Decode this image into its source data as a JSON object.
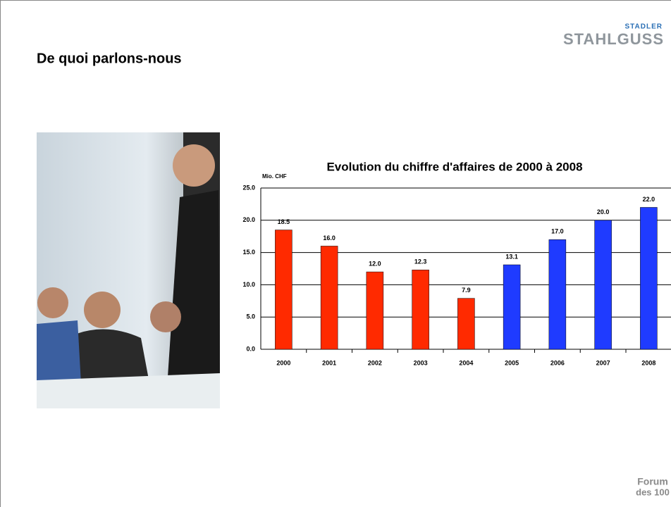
{
  "slide_title": "De quoi parlons-nous",
  "logo": {
    "top": "STADLER",
    "bottom": "STAHLGUSS"
  },
  "footer_logo": {
    "line1": "Forum",
    "line2": "des 100"
  },
  "chart_data": {
    "type": "bar",
    "title": "Evolution du chiffre d'affaires de 2000 à 2008",
    "y_label": "Mio. CHF",
    "categories": [
      "2000",
      "2001",
      "2002",
      "2003",
      "2004",
      "2005",
      "2006",
      "2007",
      "2008"
    ],
    "values": [
      18.5,
      16.0,
      12.0,
      12.3,
      7.9,
      13.1,
      17.0,
      20.0,
      22.0
    ],
    "value_labels": [
      "18.5",
      "16.0",
      "12.0",
      "12.3",
      "7.9",
      "13.1",
      "17.0",
      "20.0",
      "22.0"
    ],
    "colors": [
      "#ff2a00",
      "#ff2a00",
      "#ff2a00",
      "#ff2a00",
      "#ff2a00",
      "#1f3bff",
      "#1f3bff",
      "#1f3bff",
      "#1f3bff"
    ],
    "ylim": [
      0,
      25
    ],
    "yticks": [
      {
        "value": 0,
        "label": "0.0"
      },
      {
        "value": 5,
        "label": "5.0"
      },
      {
        "value": 10,
        "label": "10.0"
      },
      {
        "value": 15,
        "label": "15.0"
      },
      {
        "value": 20,
        "label": "20.0"
      },
      {
        "value": 25,
        "label": "25.0"
      }
    ],
    "grid": true
  }
}
